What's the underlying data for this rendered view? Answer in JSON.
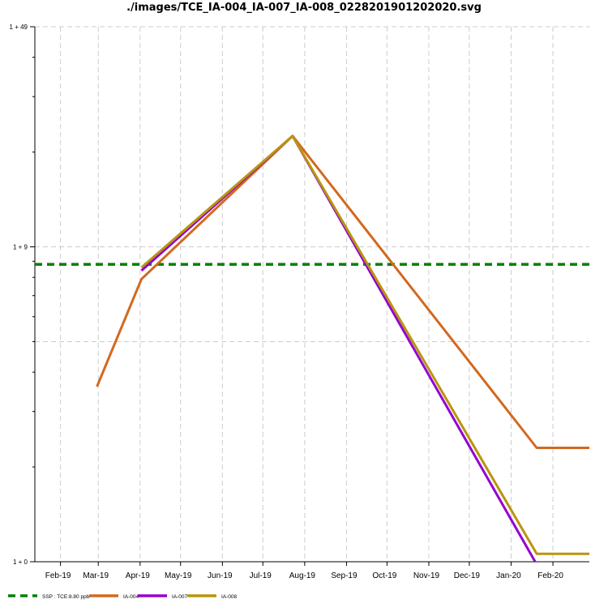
{
  "chart_data": {
    "type": "line",
    "title": "./images/TCE_IA-004_IA-007_IA-008_0228201901202020.svg",
    "xlabel": "",
    "ylabel": "",
    "x_tick_labels": [
      "Feb-19",
      "Mar-19",
      "Apr-19",
      "May-19",
      "Jun-19",
      "Jul-19",
      "Aug-19",
      "Sep-19",
      "Oct-19",
      "Nov-19",
      "Dec-19",
      "Jan-20",
      "Feb-20"
    ],
    "x_tick_dates": [
      "2019-02-01",
      "2019-03-01",
      "2019-04-01",
      "2019-05-01",
      "2019-06-01",
      "2019-07-01",
      "2019-08-01",
      "2019-09-01",
      "2019-10-01",
      "2019-11-01",
      "2019-12-01",
      "2020-01-01",
      "2020-02-01"
    ],
    "xlim": [
      "2019-01-13",
      "2020-02-28"
    ],
    "y_scale": "log",
    "y_tick_labels": [
      "1 + 0",
      "1 + 9",
      "1 + 49"
    ],
    "y_tick_values": [
      1,
      10,
      50
    ],
    "ylim": [
      1,
      50
    ],
    "grid": true,
    "legend_position": "bottom-left",
    "threshold": {
      "name": "SSP : TCE:8.80 ppb",
      "value": 8.8,
      "color": "#008000",
      "style": "dashed"
    },
    "series": [
      {
        "name": "IA-004",
        "color": "#d2691e",
        "points": [
          {
            "x": "2019-02-28",
            "y": 3.6
          },
          {
            "x": "2019-04-02",
            "y": 7.9
          },
          {
            "x": "2019-07-23",
            "y": 22.5
          },
          {
            "x": "2020-01-20",
            "y": 2.3
          },
          {
            "x": "2020-02-28",
            "y": 2.3
          }
        ]
      },
      {
        "name": "IA-007",
        "color": "#9400d3",
        "points": [
          {
            "x": "2019-04-02",
            "y": 8.4
          },
          {
            "x": "2019-07-23",
            "y": 22.5
          },
          {
            "x": "2020-01-20",
            "y": 0.98
          }
        ]
      },
      {
        "name": "IA-008",
        "color": "#b8960c",
        "points": [
          {
            "x": "2019-04-02",
            "y": 8.6
          },
          {
            "x": "2019-07-23",
            "y": 22.5
          },
          {
            "x": "2020-01-20",
            "y": 1.06
          },
          {
            "x": "2020-02-28",
            "y": 1.06
          }
        ]
      }
    ]
  }
}
